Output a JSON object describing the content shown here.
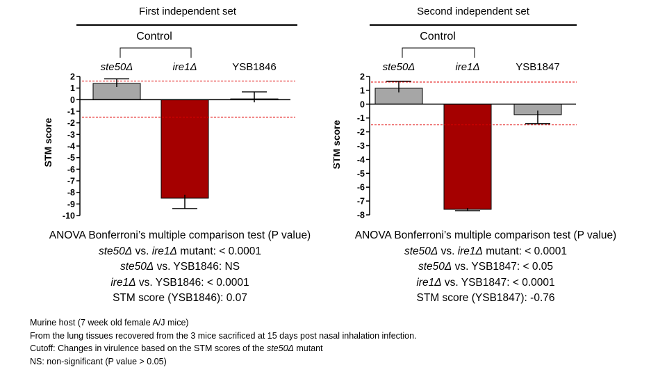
{
  "panels": [
    {
      "title": "First independent set",
      "control_label": "Control",
      "stats": {
        "heading": "ANOVA Bonferroni’s multiple comparison test (P value)",
        "lines": [
          {
            "a": "ste50Δ",
            "mid": " vs. ",
            "b": "ire1Δ",
            "rest": " mutant:  < 0.0001"
          },
          {
            "a": "ste50Δ",
            "mid": " vs. YSB1846: NS",
            "b": "",
            "rest": ""
          },
          {
            "a": "ire1Δ",
            "mid": " vs. YSB1846: < 0.0001",
            "b": "",
            "rest": ""
          }
        ],
        "score_line": "STM score (YSB1846): 0.07"
      }
    },
    {
      "title": "Second independent set",
      "control_label": "Control",
      "stats": {
        "heading": "ANOVA Bonferroni’s multiple comparison test (P value)",
        "lines": [
          {
            "a": "ste50Δ",
            "mid": " vs. ",
            "b": "ire1Δ",
            "rest": " mutant: < 0.0001"
          },
          {
            "a": "ste50Δ",
            "mid": " vs. YSB1847:  < 0.05",
            "b": "",
            "rest": ""
          },
          {
            "a": "ire1Δ",
            "mid": " vs. YSB1847: < 0.0001",
            "b": "",
            "rest": ""
          }
        ],
        "score_line": "STM score (YSB1847): -0.76"
      }
    }
  ],
  "chart_data": [
    {
      "type": "bar",
      "title": "First independent set",
      "categories": [
        "ste50Δ",
        "ire1Δ",
        "YSB1846"
      ],
      "categories_italic": [
        true,
        true,
        false
      ],
      "values": [
        1.4,
        -8.5,
        0.07
      ],
      "errors": [
        0.4,
        0.9,
        0.6
      ],
      "error_direction": [
        "up",
        "down",
        "up"
      ],
      "bar_colors": [
        "#a6a6a6",
        "#a50000",
        "#a6a6a6"
      ],
      "ylabel": "STM score",
      "ylim": [
        -10,
        2
      ],
      "yticks": [
        2,
        1,
        0,
        -1,
        -2,
        -3,
        -4,
        -5,
        -6,
        -7,
        -8,
        -9,
        -10
      ],
      "cutoffs": [
        1.6,
        -1.5
      ],
      "cutoff_color": "#e00000"
    },
    {
      "type": "bar",
      "title": "Second independent set",
      "categories": [
        "ste50Δ",
        "ire1Δ",
        "YSB1847"
      ],
      "categories_italic": [
        true,
        true,
        false
      ],
      "values": [
        1.15,
        -7.6,
        -0.76
      ],
      "errors": [
        0.5,
        0.1,
        0.65
      ],
      "error_direction": [
        "up",
        "down",
        "down"
      ],
      "bar_colors": [
        "#a6a6a6",
        "#a50000",
        "#a6a6a6"
      ],
      "ylabel": "STM score",
      "ylim": [
        -8,
        2
      ],
      "yticks": [
        2,
        1,
        0,
        -1,
        -2,
        -3,
        -4,
        -5,
        -6,
        -7,
        -8
      ],
      "cutoffs": [
        1.6,
        -1.5
      ],
      "cutoff_color": "#e00000"
    }
  ],
  "notes": {
    "line1": "Murine host (7 week old female A/J mice)",
    "line2": "From  the lung tissues recovered from the 3 mice sacrificed at 15 days post nasal inhalation infection.",
    "line3_prefix": "Cutoff: Changes in virulence based on the STM scores of the ",
    "line3_italic": "ste50Δ",
    "line3_suffix": " mutant",
    "line4": "NS: non-significant (P value > 0.05)"
  }
}
